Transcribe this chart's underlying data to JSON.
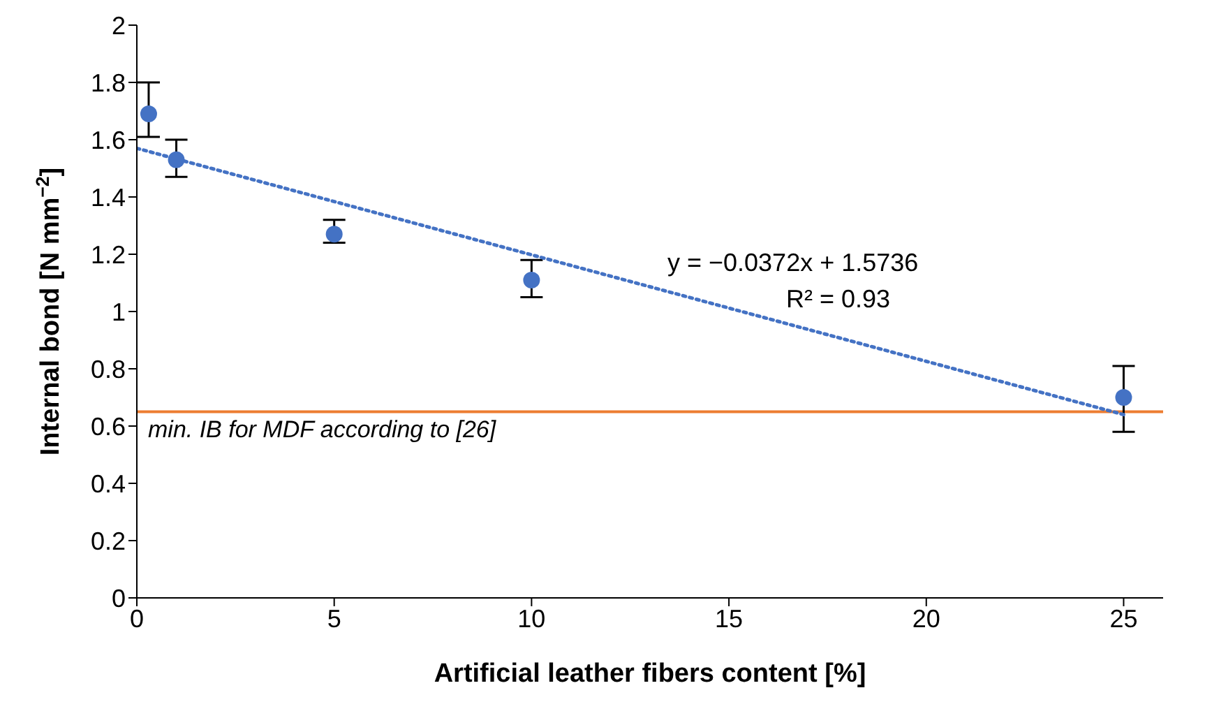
{
  "chart_data": {
    "type": "scatter",
    "xlabel": "Artificial leather fibers content [%]",
    "ylabel": "Internal bond [N mm$^{−2}$]",
    "xlim": [
      0,
      26
    ],
    "xticks": [
      0,
      5,
      10,
      15,
      20,
      25
    ],
    "ylim": [
      0,
      2
    ],
    "yticks": [
      0,
      0.2,
      0.4,
      0.6,
      0.8,
      1,
      1.2,
      1.4,
      1.6,
      1.8,
      2
    ],
    "series": [
      {
        "color": "#4472c4",
        "marker": "circle",
        "x": [
          0.3,
          1,
          5,
          10,
          25
        ],
        "values": [
          1.69,
          1.53,
          1.27,
          1.11,
          0.7
        ],
        "errors": [
          [
            1.61,
            1.8
          ],
          [
            1.47,
            1.6
          ],
          [
            1.24,
            1.32
          ],
          [
            1.05,
            1.18
          ],
          [
            0.58,
            0.81
          ]
        ]
      },
      {
        "type": "line",
        "color": "#4472c4",
        "line_style": "dotted",
        "x": [
          0,
          25
        ],
        "values": [
          1.57,
          0.64
        ]
      }
    ],
    "ref_lines": [
      {
        "axis": "y",
        "value": 0.65,
        "label": "min. IB for MDF according to [26]",
        "color": "#ed7d31"
      }
    ],
    "annotations": [
      "y = −0.0372x + 1.5736",
      "R² = 0.93"
    ]
  }
}
